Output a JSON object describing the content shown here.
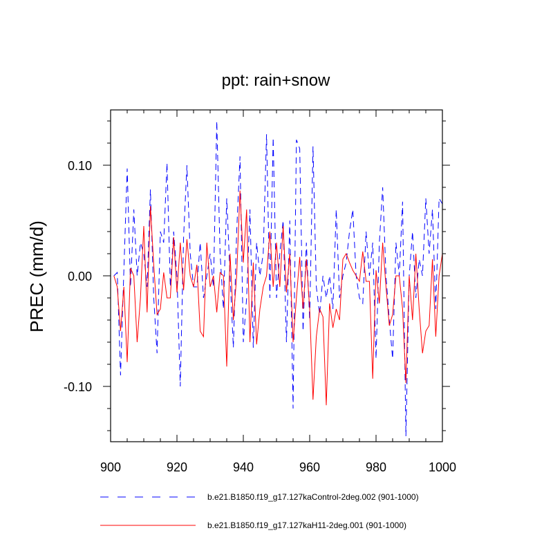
{
  "chart_data": {
    "type": "line",
    "title": "ppt: rain+snow",
    "xlabel": "",
    "ylabel": "PREC  (mm/d)",
    "xlim": [
      900,
      1000
    ],
    "ylim": [
      -0.15,
      0.15
    ],
    "x_ticks": [
      900,
      920,
      940,
      960,
      980,
      1000
    ],
    "x_tick_labels": [
      "900",
      "920",
      "940",
      "960",
      "980",
      "1000"
    ],
    "y_ticks": [
      -0.1,
      0.0,
      0.1
    ],
    "y_tick_labels": [
      "-0.10",
      "0.00",
      "0.10"
    ],
    "grid": false,
    "legend_position": "bottom",
    "x": [
      901,
      902,
      903,
      904,
      905,
      906,
      907,
      908,
      909,
      910,
      911,
      912,
      913,
      914,
      915,
      916,
      917,
      918,
      919,
      920,
      921,
      922,
      923,
      924,
      925,
      926,
      927,
      928,
      929,
      930,
      931,
      932,
      933,
      934,
      935,
      936,
      937,
      938,
      939,
      940,
      941,
      942,
      943,
      944,
      945,
      946,
      947,
      948,
      949,
      950,
      951,
      952,
      953,
      954,
      955,
      956,
      957,
      958,
      959,
      960,
      961,
      962,
      963,
      964,
      965,
      966,
      967,
      968,
      969,
      970,
      971,
      972,
      973,
      974,
      975,
      976,
      977,
      978,
      979,
      980,
      981,
      982,
      983,
      984,
      985,
      986,
      987,
      988,
      989,
      990,
      991,
      992,
      993,
      994,
      995,
      996,
      997,
      998,
      999,
      1000
    ],
    "series": [
      {
        "name": "b.e21.B1850.f19_g17.127kaControl-2deg.002 (901-1000)",
        "color": "#0000ff",
        "dash": "dashed",
        "values": [
          0.0,
          0.003,
          -0.09,
          0.005,
          0.097,
          -0.01,
          0.06,
          0.0,
          0.03,
          0.02,
          -0.01,
          0.078,
          -0.02,
          -0.07,
          0.04,
          0.03,
          0.102,
          -0.01,
          0.04,
          0.0,
          -0.1,
          0.035,
          0.1,
          0.02,
          -0.01,
          -0.01,
          0.03,
          -0.02,
          0.0,
          0.02,
          -0.01,
          0.14,
          0.02,
          -0.03,
          0.07,
          0.0,
          -0.065,
          0.04,
          0.108,
          -0.06,
          -0.02,
          0.06,
          -0.065,
          0.03,
          0.0,
          0.02,
          0.128,
          -0.02,
          0.125,
          -0.02,
          0.02,
          0.05,
          -0.06,
          0.05,
          -0.12,
          0.123,
          0.115,
          -0.05,
          0.03,
          -0.04,
          0.117,
          -0.01,
          -0.035,
          0.0,
          -0.02,
          0.0,
          -0.03,
          0.06,
          -0.02,
          0.0,
          0.012,
          0.04,
          0.06,
          0.0,
          -0.02,
          -0.025,
          0.04,
          0.0,
          0.03,
          -0.075,
          0.03,
          0.08,
          0.0,
          -0.04,
          -0.075,
          0.03,
          0.0,
          0.067,
          -0.145,
          0.0,
          0.04,
          -0.02,
          0.015,
          0.0,
          0.07,
          0.02,
          0.06,
          -0.03,
          0.07,
          0.065
        ]
      },
      {
        "name": "b.e21.B1850.f19_g17.127kaH11-2deg.001 (901-1000)",
        "color": "#ff0000",
        "dash": "solid",
        "values": [
          0.0,
          -0.01,
          -0.05,
          -0.01,
          -0.078,
          0.007,
          0.0,
          -0.06,
          -0.02,
          0.045,
          -0.033,
          0.063,
          0.01,
          -0.035,
          -0.03,
          0.003,
          -0.02,
          -0.02,
          0.035,
          -0.015,
          0.03,
          -0.013,
          0.033,
          0.0,
          -0.01,
          0.01,
          -0.05,
          -0.055,
          0.03,
          -0.01,
          0.0,
          -0.033,
          0.003,
          0.0,
          -0.082,
          0.02,
          -0.04,
          0.0,
          0.077,
          0.012,
          0.06,
          -0.06,
          0.012,
          -0.062,
          -0.03,
          -0.01,
          0.0,
          0.04,
          -0.01,
          0.03,
          -0.01,
          0.045,
          -0.015,
          0.02,
          -0.06,
          -0.02,
          0.017,
          -0.03,
          0.015,
          -0.03,
          -0.112,
          -0.055,
          -0.03,
          -0.037,
          -0.117,
          -0.025,
          -0.047,
          -0.03,
          -0.04,
          0.015,
          0.02,
          0.012,
          0.005,
          0.0,
          -0.005,
          0.022,
          -0.005,
          -0.005,
          -0.093,
          0.005,
          -0.025,
          0.03,
          -0.01,
          -0.045,
          -0.035,
          0.0,
          0.0,
          -0.03,
          -0.097,
          0.0,
          -0.04,
          0.02,
          -0.03,
          -0.07,
          -0.05,
          -0.045,
          0.015,
          -0.055,
          0.0,
          0.02
        ]
      }
    ]
  }
}
